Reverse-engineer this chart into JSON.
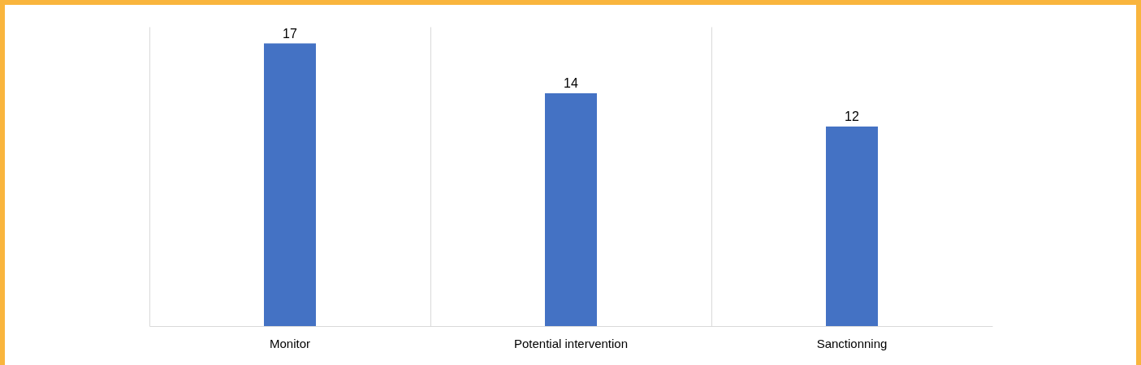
{
  "chart_data": {
    "type": "bar",
    "categories": [
      "Monitor",
      "Potential intervention",
      "Sanctionning"
    ],
    "values": [
      17,
      14,
      12
    ],
    "color": "#4472c4",
    "data_labels": true,
    "grid": "x"
  }
}
